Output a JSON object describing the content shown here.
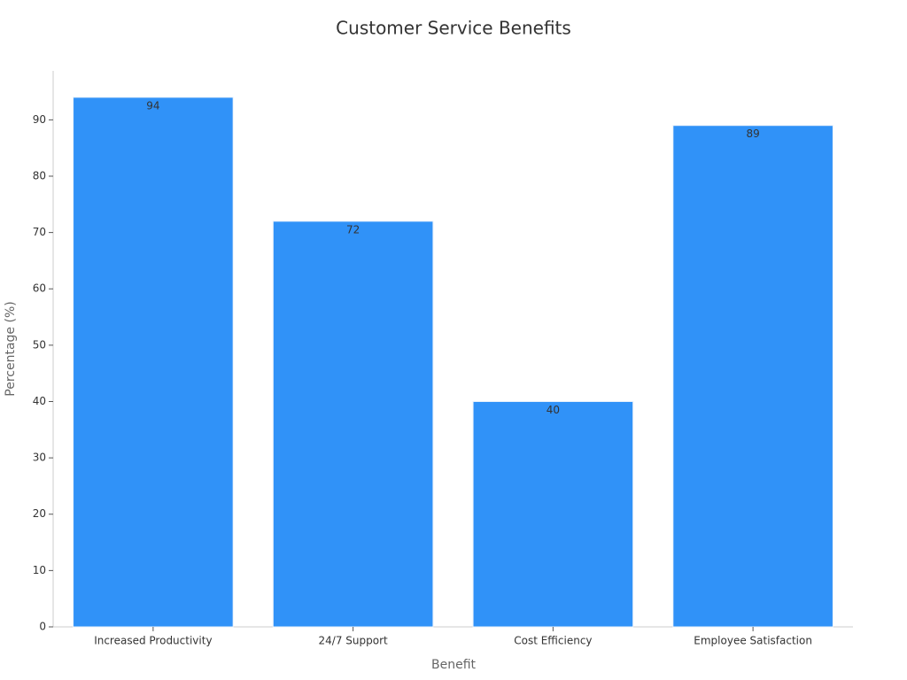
{
  "chart_data": {
    "type": "bar",
    "title": "Customer Service Benefits",
    "x_label": "Benefit",
    "y_label": "Percentage (%)",
    "categories": [
      "Increased Productivity",
      "24/7 Support",
      "Cost Efficiency",
      "Employee Satisfaction"
    ],
    "values": [
      94,
      72,
      40,
      89
    ],
    "color": "#3092f8",
    "ylim": [
      0,
      98.7
    ],
    "yticks": [
      0,
      10,
      20,
      30,
      40,
      50,
      60,
      70,
      80,
      90
    ],
    "grid": false
  }
}
